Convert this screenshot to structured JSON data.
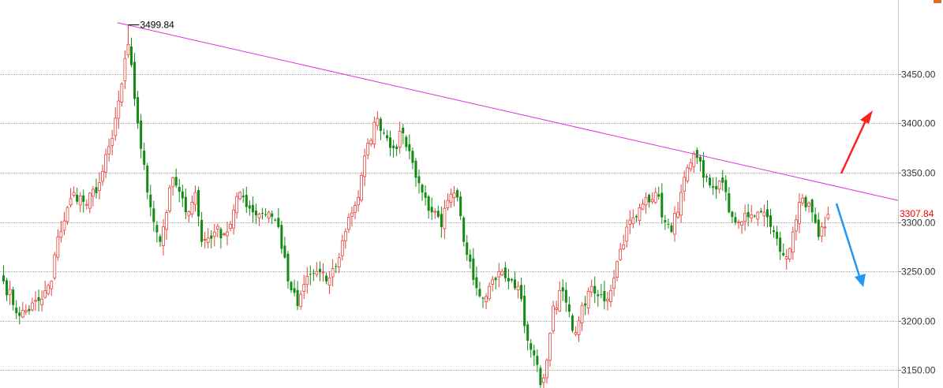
{
  "chart_data": {
    "type": "candlestick",
    "title": "",
    "xlabel": "",
    "ylabel": "",
    "ylim": [
      3132,
      3525
    ],
    "y_ticks": [
      {
        "value": 3150,
        "label": "3150.00"
      },
      {
        "value": 3200,
        "label": "3200.00"
      },
      {
        "value": 3250,
        "label": "3250.00"
      },
      {
        "value": 3300,
        "label": "3300.00"
      },
      {
        "value": 3350,
        "label": "3350.00"
      },
      {
        "value": 3400,
        "label": "3400.00"
      },
      {
        "value": 3450,
        "label": "3450.00"
      }
    ],
    "grid": true,
    "up_color": "#e8413a",
    "down_color": "#138a13",
    "peak_annotation": {
      "label": "3499.84",
      "value": 3499.84,
      "bar_index": 39
    },
    "last_price": {
      "label": "3307.84",
      "value": 3307.84,
      "color": "#ff0000"
    },
    "trendline": {
      "color": "#dd33dd",
      "from": {
        "bar_index": 36,
        "value": 3502
      },
      "to": {
        "bar_index": 283,
        "value": 3320
      }
    },
    "arrows": [
      {
        "direction": "up",
        "color": "#ff2020"
      },
      {
        "direction": "down",
        "color": "#2196f3"
      }
    ],
    "anchors": [
      [
        0,
        3240
      ],
      [
        5,
        3205
      ],
      [
        12,
        3222
      ],
      [
        15,
        3240
      ],
      [
        17,
        3285
      ],
      [
        22,
        3330
      ],
      [
        26,
        3318
      ],
      [
        30,
        3340
      ],
      [
        34,
        3385
      ],
      [
        37,
        3440
      ],
      [
        39,
        3480
      ],
      [
        42,
        3400
      ],
      [
        45,
        3330
      ],
      [
        49,
        3280
      ],
      [
        53,
        3345
      ],
      [
        57,
        3310
      ],
      [
        60,
        3330
      ],
      [
        62,
        3280
      ],
      [
        66,
        3290
      ],
      [
        70,
        3290
      ],
      [
        74,
        3330
      ],
      [
        78,
        3310
      ],
      [
        83,
        3310
      ],
      [
        86,
        3295
      ],
      [
        89,
        3240
      ],
      [
        92,
        3215
      ],
      [
        95,
        3245
      ],
      [
        98,
        3250
      ],
      [
        101,
        3240
      ],
      [
        104,
        3255
      ],
      [
        108,
        3305
      ],
      [
        111,
        3325
      ],
      [
        114,
        3380
      ],
      [
        117,
        3405
      ],
      [
        120,
        3385
      ],
      [
        122,
        3375
      ],
      [
        125,
        3390
      ],
      [
        128,
        3360
      ],
      [
        131,
        3330
      ],
      [
        134,
        3310
      ],
      [
        137,
        3295
      ],
      [
        139,
        3322
      ],
      [
        142,
        3325
      ],
      [
        144,
        3280
      ],
      [
        146,
        3260
      ],
      [
        149,
        3225
      ],
      [
        152,
        3235
      ],
      [
        155,
        3250
      ],
      [
        158,
        3240
      ],
      [
        161,
        3235
      ],
      [
        164,
        3180
      ],
      [
        166,
        3165
      ],
      [
        168,
        3135
      ],
      [
        170,
        3160
      ],
      [
        172,
        3215
      ],
      [
        175,
        3230
      ],
      [
        178,
        3190
      ],
      [
        180,
        3200
      ],
      [
        183,
        3230
      ],
      [
        186,
        3225
      ],
      [
        189,
        3222
      ],
      [
        192,
        3260
      ],
      [
        195,
        3295
      ],
      [
        198,
        3305
      ],
      [
        201,
        3325
      ],
      [
        204,
        3330
      ],
      [
        207,
        3300
      ],
      [
        209,
        3290
      ],
      [
        212,
        3330
      ],
      [
        215,
        3360
      ],
      [
        217,
        3365
      ],
      [
        219,
        3345
      ],
      [
        222,
        3335
      ],
      [
        225,
        3340
      ],
      [
        227,
        3310
      ],
      [
        230,
        3300
      ],
      [
        233,
        3305
      ],
      [
        236,
        3310
      ],
      [
        239,
        3305
      ],
      [
        241,
        3290
      ],
      [
        243,
        3270
      ],
      [
        245,
        3265
      ],
      [
        247,
        3290
      ],
      [
        249,
        3320
      ],
      [
        251,
        3315
      ],
      [
        253,
        3310
      ],
      [
        255,
        3285
      ],
      [
        257,
        3295
      ],
      [
        258,
        3310
      ]
    ]
  }
}
